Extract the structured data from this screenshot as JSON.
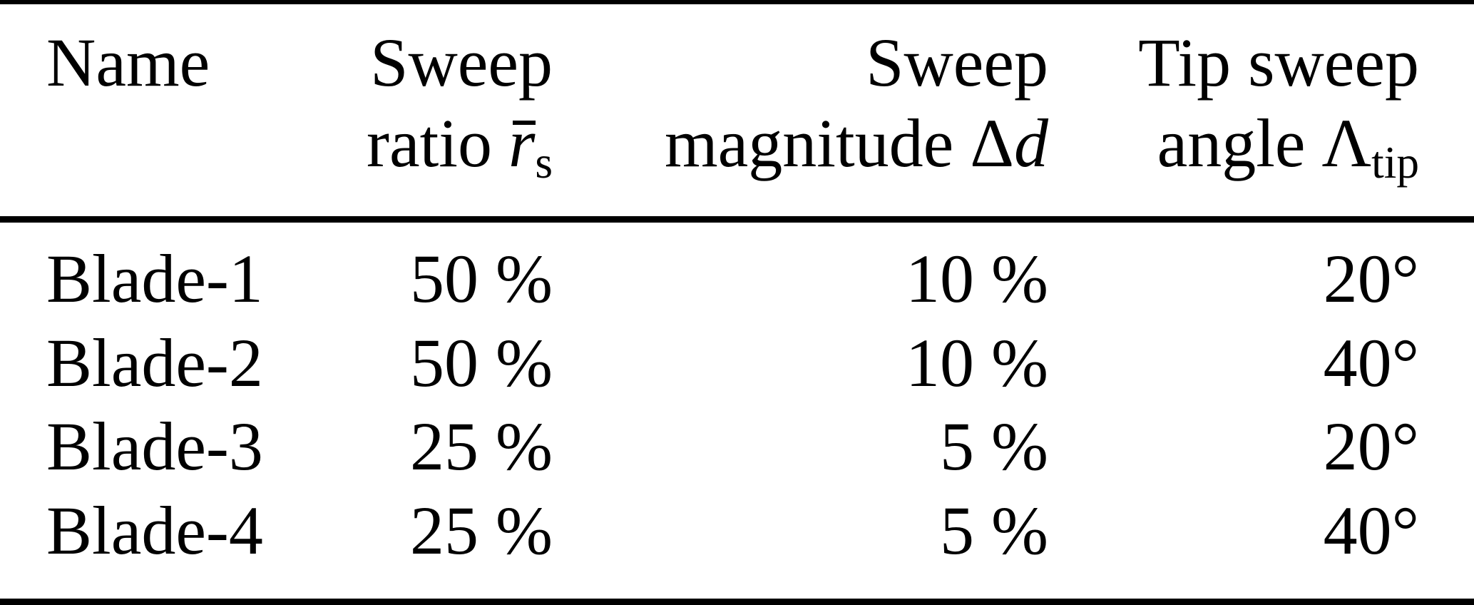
{
  "colors": {
    "background": "#ffffff",
    "text": "#000000",
    "rule": "#000000"
  },
  "table": {
    "columns": [
      {
        "id": "name",
        "header_line1": "Name",
        "header_line2": "",
        "align": "left"
      },
      {
        "id": "sweep_ratio",
        "header_line1": "Sweep",
        "header_line2_prefix": "ratio",
        "symbol": "r",
        "symbol_sub": "s",
        "align": "right"
      },
      {
        "id": "sweep_magnitude",
        "header_line1": "Sweep",
        "header_line2_prefix": "magnitude",
        "symbol": "Δ",
        "symbol_italic": "d",
        "align": "right"
      },
      {
        "id": "tip_sweep_angle",
        "header_line1": "Tip sweep",
        "header_line2_prefix": "angle",
        "symbol": "Λ",
        "symbol_sub": "tip",
        "align": "right"
      }
    ],
    "rows": [
      {
        "name": "Blade-1",
        "sweep_ratio": "50 %",
        "sweep_magnitude": "10 %",
        "tip_sweep_angle": "20°"
      },
      {
        "name": "Blade-2",
        "sweep_ratio": "50 %",
        "sweep_magnitude": "10 %",
        "tip_sweep_angle": "40°"
      },
      {
        "name": "Blade-3",
        "sweep_ratio": "25 %",
        "sweep_magnitude": "5 %",
        "tip_sweep_angle": "20°"
      },
      {
        "name": "Blade-4",
        "sweep_ratio": "25 %",
        "sweep_magnitude": "5 %",
        "tip_sweep_angle": "40°"
      }
    ]
  }
}
